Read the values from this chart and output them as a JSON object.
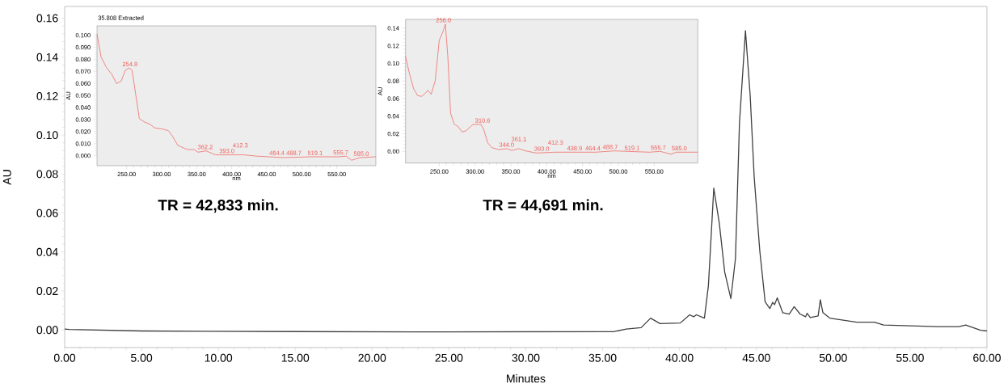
{
  "chart_data": [
    {
      "type": "line",
      "xlabel": "Minutes",
      "ylabel": "AU",
      "xlim": [
        0,
        60
      ],
      "ylim": [
        -0.009,
        0.166
      ],
      "xticks": [
        {
          "value": 0,
          "label": "0.00"
        },
        {
          "value": 5,
          "label": "5.00"
        },
        {
          "value": 10,
          "label": "10.00"
        },
        {
          "value": 15,
          "label": "15.00"
        },
        {
          "value": 20,
          "label": "20.00"
        },
        {
          "value": 25,
          "label": "25.00"
        },
        {
          "value": 30,
          "label": "30.00"
        },
        {
          "value": 35,
          "label": "35.00"
        },
        {
          "value": 40,
          "label": "40.00"
        },
        {
          "value": 45,
          "label": "45.00"
        },
        {
          "value": 50,
          "label": "50.00"
        },
        {
          "value": 55,
          "label": "55.00"
        },
        {
          "value": 60,
          "label": "60.00"
        }
      ],
      "yticks": [
        {
          "value": 0,
          "label": "0.00"
        },
        {
          "value": 0.02,
          "label": "0.02"
        },
        {
          "value": 0.04,
          "label": "0.04"
        },
        {
          "value": 0.06,
          "label": "0.06"
        },
        {
          "value": 0.08,
          "label": "0.08"
        },
        {
          "value": 0.1,
          "label": "0.10"
        },
        {
          "value": 0.12,
          "label": "0.12"
        },
        {
          "value": 0.14,
          "label": "0.14"
        },
        {
          "value": 0.16,
          "label": "0.16"
        }
      ],
      "series": [
        {
          "color": "#404040",
          "x": [
            0,
            0.3,
            5,
            15,
            25,
            35.75,
            36.54,
            37.5,
            38.12,
            38.73,
            40.05,
            40.66,
            40.92,
            41.1,
            41.62,
            41.88,
            42.23,
            42.59,
            42.94,
            43.34,
            43.64,
            43.9,
            44.29,
            44.6,
            44.86,
            45.22,
            45.57,
            45.88,
            46.06,
            46.18,
            46.36,
            46.71,
            47.14,
            47.46,
            47.84,
            48.2,
            48.3,
            48.51,
            49.02,
            49.16,
            49.33,
            49.77,
            51.53,
            52.67,
            53.28,
            56.78,
            58.18,
            58.62,
            59.59,
            60
          ],
          "values": [
            0.0005,
            0.0003,
            -0.0005,
            -0.0008,
            -0.001,
            -0.0008,
            0.0005,
            0.0012,
            0.0061,
            0.0033,
            0.0036,
            0.0078,
            0.0068,
            0.0078,
            0.0061,
            0.0228,
            0.0728,
            0.0547,
            0.0297,
            0.0161,
            0.0367,
            0.1061,
            0.1536,
            0.12,
            0.0783,
            0.0408,
            0.0145,
            0.011,
            0.0142,
            0.013,
            0.0165,
            0.0089,
            0.0082,
            0.012,
            0.0082,
            0.0068,
            0.0086,
            0.0064,
            0.0072,
            0.0155,
            0.0089,
            0.0061,
            0.004,
            0.004,
            0.0026,
            0.0017,
            0.0017,
            0.0026,
            -0.0001,
            -0.0005
          ]
        }
      ]
    },
    {
      "type": "line",
      "title": "35.808 Extracted",
      "xlabel": "nm",
      "ylabel": "AU",
      "xlim": [
        207.7,
        605.8
      ],
      "ylim": [
        -0.0083,
        0.1078
      ],
      "xticks": [
        {
          "value": 250,
          "label": "250.00"
        },
        {
          "value": 300,
          "label": "300.00"
        },
        {
          "value": 350,
          "label": "350.00"
        },
        {
          "value": 400,
          "label": "400.00"
        },
        {
          "value": 450,
          "label": "450.00"
        },
        {
          "value": 500,
          "label": "500.00"
        },
        {
          "value": 550,
          "label": "550.00"
        }
      ],
      "yticks": [
        {
          "value": 0,
          "label": "0.000"
        },
        {
          "value": 0.01,
          "label": "0.010"
        },
        {
          "value": 0.02,
          "label": "0.020"
        },
        {
          "value": 0.03,
          "label": "0.030"
        },
        {
          "value": 0.04,
          "label": "0.040"
        },
        {
          "value": 0.05,
          "label": "0.050"
        },
        {
          "value": 0.06,
          "label": "0.060"
        },
        {
          "value": 0.07,
          "label": "0.070"
        },
        {
          "value": 0.08,
          "label": "0.080"
        },
        {
          "value": 0.09,
          "label": "0.090"
        },
        {
          "value": 0.1,
          "label": "0.100"
        }
      ],
      "series": [
        {
          "color": "#ef5a55",
          "x": [
            207.7,
            213.5,
            221.2,
            228.8,
            235.8,
            242.3,
            248.1,
            253.8,
            257.7,
            263.5,
            268.1,
            275,
            282.7,
            290.4,
            300,
            309.6,
            315.4,
            323.1,
            336.5,
            346.2,
            351.9,
            363.5,
            376.9,
            398.1,
            417.3,
            436.5,
            475,
            513.5,
            551.9,
            563.5,
            571.2,
            582.7,
            605.8
          ],
          "values": [
            0.1011,
            0.0821,
            0.0732,
            0.0676,
            0.0598,
            0.062,
            0.071,
            0.0728,
            0.071,
            0.0487,
            0.0308,
            0.0281,
            0.0263,
            0.023,
            0.0223,
            0.0208,
            0.0163,
            0.0085,
            0.0051,
            0.0051,
            0.0029,
            0.004,
            0.0007,
            0.0007,
            0.0007,
            -0.0004,
            -0.0016,
            -0.0009,
            -0.0009,
            -0.0004,
            -0.0038,
            -0.0016,
            -0.0009
          ]
        }
      ],
      "annotations": [
        {
          "text": "254.8",
          "x": 254.8,
          "y": 0.0728
        },
        {
          "text": "362.2",
          "x": 362.2,
          "y": 0.004
        },
        {
          "text": "393.0",
          "x": 393.0,
          "y": 0.0007
        },
        {
          "text": "412.3",
          "x": 412.3,
          "y": 0.0007
        },
        {
          "text": "464.4",
          "x": 464.4,
          "y": -0.001
        },
        {
          "text": "488.7",
          "x": 488.7,
          "y": -0.001
        },
        {
          "text": "519.1",
          "x": 519.1,
          "y": -0.001
        },
        {
          "text": "555.7",
          "x": 555.7,
          "y": -0.0006
        },
        {
          "text": "585.0",
          "x": 585.0,
          "y": -0.0016
        },
        "TR = 42,833 min."
      ]
    },
    {
      "type": "line",
      "ylabel": "AU",
      "xlabel": "nm",
      "xlim": [
        203,
        610.9
      ],
      "ylim": [
        -0.0132,
        0.15
      ],
      "xticks": [
        {
          "value": 250,
          "label": "250.00"
        },
        {
          "value": 300,
          "label": "300.00"
        },
        {
          "value": 350,
          "label": "350.00"
        },
        {
          "value": 400,
          "label": "400.00"
        },
        {
          "value": 450,
          "label": "450.00"
        },
        {
          "value": 500,
          "label": "500.00"
        },
        {
          "value": 550,
          "label": "550.00"
        }
      ],
      "yticks": [
        {
          "value": 0,
          "label": "0.00"
        },
        {
          "value": 0.02,
          "label": "0.02"
        },
        {
          "value": 0.04,
          "label": "0.04"
        },
        {
          "value": 0.06,
          "label": "0.06"
        },
        {
          "value": 0.08,
          "label": "0.08"
        },
        {
          "value": 0.1,
          "label": "0.10"
        },
        {
          "value": 0.12,
          "label": "0.12"
        },
        {
          "value": 0.14,
          "label": "0.14"
        }
      ],
      "series": [
        {
          "color": "#ef5a55",
          "x": [
            203,
            208.6,
            214.3,
            220,
            225.6,
            231.2,
            234.2,
            238.7,
            244.4,
            250,
            255.6,
            258.6,
            262,
            265.8,
            270.7,
            276.3,
            282,
            287.6,
            297,
            308.3,
            312,
            317.7,
            323.3,
            332.7,
            344,
            351.5,
            361,
            370.3,
            385.3,
            411.7,
            468,
            494.4,
            543.2,
            558.3,
            573.3,
            580.8,
            610.9
          ],
          "values": [
            0.1078,
            0.0879,
            0.0711,
            0.0634,
            0.0625,
            0.0665,
            0.0695,
            0.065,
            0.0803,
            0.1262,
            0.1369,
            0.1446,
            0.1078,
            0.0435,
            0.0313,
            0.0282,
            0.0221,
            0.0236,
            0.0306,
            0.0306,
            0.0251,
            0.0098,
            0.0043,
            0.0021,
            0.0031,
            0.0012,
            0.0031,
            0.0006,
            -0.0018,
            -0.0009,
            -0.0009,
            0.0006,
            -0.0009,
            0,
            -0.0031,
            -0.0009,
            -0.0009
          ]
        }
      ],
      "annotations": [
        {
          "text": "256.0",
          "x": 256.0,
          "y": 0.1446
        },
        {
          "text": "310.6",
          "x": 310.6,
          "y": 0.0306
        },
        {
          "text": "344.0",
          "x": 344.0,
          "y": 0.0031
        },
        {
          "text": "361.1",
          "x": 361.1,
          "y": 0.0031
        },
        {
          "text": "393.0",
          "x": 393.0,
          "y": -0.0015
        },
        {
          "text": "412.3",
          "x": 412.3,
          "y": -0.0009
        },
        {
          "text": "438.9",
          "x": 438.9,
          "y": -0.0009
        },
        {
          "text": "464.4",
          "x": 464.4,
          "y": -0.0009
        },
        {
          "text": "488.7",
          "x": 488.7,
          "y": 0.0006
        },
        {
          "text": "519.1",
          "x": 519.1,
          "y": -0.0005
        },
        {
          "text": "555.7",
          "x": 555.7,
          "y": 0
        },
        {
          "text": "585.0",
          "x": 585.0,
          "y": -0.0009
        },
        "TR = 44,691 min."
      ]
    }
  ]
}
